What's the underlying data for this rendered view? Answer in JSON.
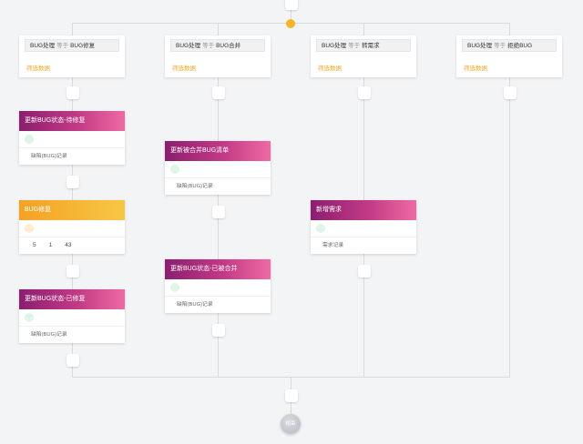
{
  "branches": [
    {
      "field": "BUG处理",
      "op": "等于",
      "value": "BUG修复",
      "filter": "筛选数据"
    },
    {
      "field": "BUG处理",
      "op": "等于",
      "value": "BUG合并",
      "filter": "筛选数据"
    },
    {
      "field": "BUG处理",
      "op": "等于",
      "value": "转需求",
      "filter": "筛选数据"
    },
    {
      "field": "BUG处理",
      "op": "等于",
      "value": "拒绝BUG",
      "filter": "筛选数据"
    }
  ],
  "actions": {
    "update_to_fix": {
      "title": "更新BUG状态-待修复",
      "note": "缺陷(BUG)记录"
    },
    "bug_fix": {
      "title": "BUG修复",
      "nums": [
        "5",
        "1",
        "43"
      ]
    },
    "update_fixed": {
      "title": "更新BUG状态-已修复",
      "note": "缺陷(BUG)记录"
    },
    "update_merge_list": {
      "title": "更新被合并BUG清单",
      "note": "缺陷(BUG)记录"
    },
    "update_merged": {
      "title": "更新BUG状态-已被合并",
      "note": "缺陷(BUG)记录"
    },
    "add_requirement": {
      "title": "新增需求",
      "note": "需求记录"
    }
  },
  "end_label": "结束",
  "colors": {
    "start": "#f5b526",
    "purple": "#8b1e6f",
    "pink": "#ef6aa4",
    "orange": "#f4a224"
  }
}
